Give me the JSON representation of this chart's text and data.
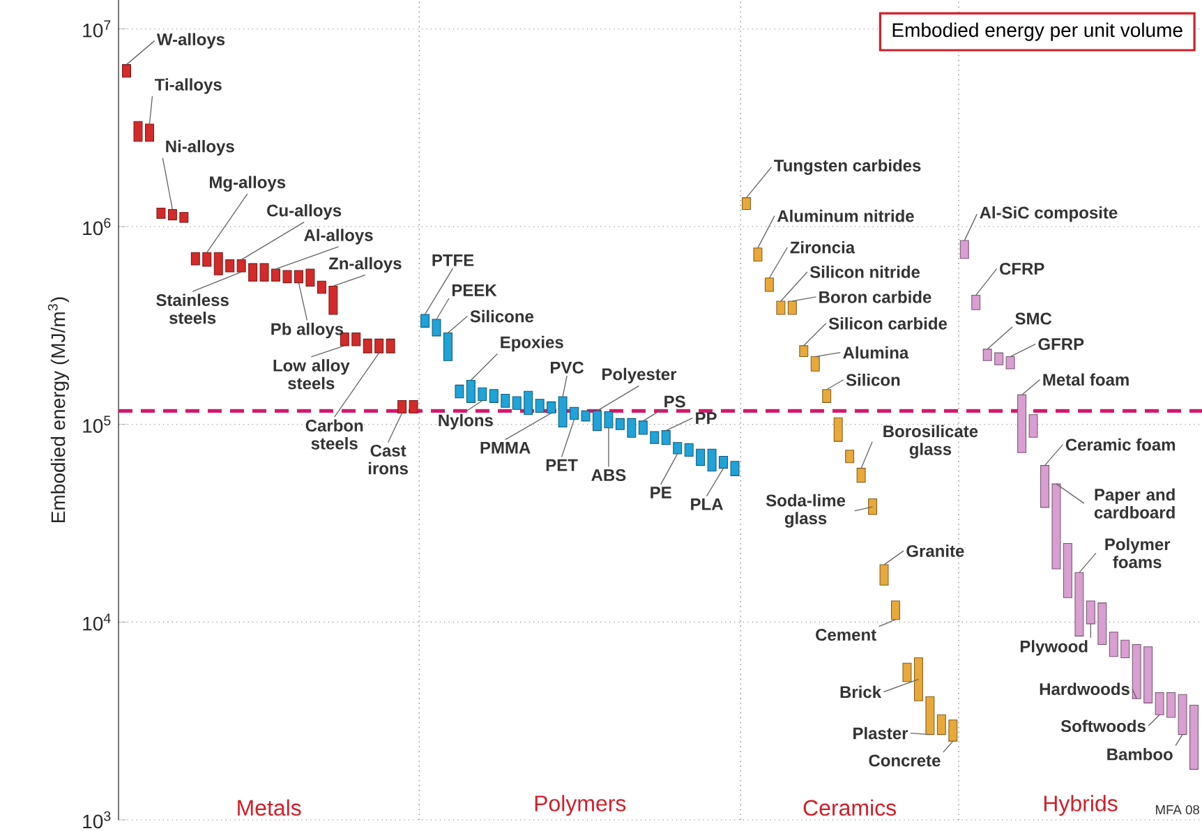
{
  "chart_data": {
    "type": "bar",
    "title": "Embodied energy per unit volume",
    "ylabel": "Embodied energy (MJ/m$^{3}$)",
    "categories": [
      null,
      null,
      null,
      null,
      null,
      null,
      null,
      null,
      null,
      null,
      null,
      null,
      null,
      null,
      null,
      null,
      null,
      null,
      null,
      null,
      null,
      null,
      null,
      null,
      null,
      null,
      null,
      null,
      null,
      null,
      null,
      null,
      null,
      null,
      null,
      null,
      null,
      null,
      null,
      null,
      null,
      null,
      null,
      null,
      null,
      null,
      null,
      null,
      null,
      null,
      null,
      null,
      null,
      null,
      null,
      null,
      null,
      null,
      null,
      null,
      null,
      null,
      null,
      null,
      null,
      null,
      null,
      null,
      null,
      null,
      null,
      null,
      null,
      null,
      null,
      null,
      null,
      null,
      null,
      null,
      null,
      null,
      null,
      null,
      null,
      null,
      null,
      null,
      null,
      null,
      null,
      null,
      null,
      null
    ],
    "base": [
      5700000,
      2700000,
      2700000,
      1100000,
      1080000,
      1050000,
      640000,
      630000,
      570000,
      590000,
      590000,
      530000,
      530000,
      530000,
      520000,
      520000,
      500000,
      460000,
      360000,
      250000,
      250000,
      230000,
      230000,
      230000,
      114000,
      114000,
      310000,
      280000,
      210000,
      136000,
      129000,
      132000,
      129000,
      122000,
      119000,
      112000,
      115000,
      114000,
      97000,
      106000,
      104000,
      93000,
      96000,
      94000,
      86000,
      89000,
      80000,
      79000,
      71000,
      69000,
      62000,
      58000,
      60000,
      55000,
      1220000,
      670000,
      470000,
      360000,
      360000,
      220000,
      186000,
      129000,
      82000,
      64000,
      51000,
      35000,
      15400,
      10300,
      5000,
      4000,
      2700,
      2700,
      2500,
      690000,
      380000,
      210000,
      200000,
      191000,
      72000,
      86000,
      38000,
      18600,
      13300,
      8500,
      9800,
      7700,
      6700,
      6600,
      4100,
      3900,
      3400,
      3300,
      2700,
      1800
    ],
    "values": [
      900000,
      700000,
      600000,
      140000,
      140000,
      130000,
      100000,
      110000,
      170000,
      90000,
      90000,
      120000,
      120000,
      80000,
      80000,
      80000,
      110000,
      70000,
      140000,
      40000,
      40000,
      40000,
      40000,
      40000,
      18000,
      18000,
      50000,
      60000,
      80000,
      22000,
      38000,
      21000,
      21000,
      20000,
      19000,
      35000,
      19000,
      16000,
      41000,
      16000,
      13000,
      24000,
      20000,
      13000,
      21000,
      15000,
      12000,
      14000,
      10000,
      11000,
      13000,
      17000,
      9000,
      10000,
      180000,
      110000,
      80000,
      60000,
      60000,
      30000,
      34000,
      21000,
      26000,
      10000,
      9000,
      7000,
      4100,
      2500,
      1200,
      2600,
      1500,
      700,
      700,
      160000,
      70000,
      30000,
      30000,
      29000,
      69000,
      26000,
      24000,
      31400,
      11700,
      9300,
      3000,
      4800,
      2200,
      1500,
      3600,
      3600,
      1000,
      1100,
      1600,
      2000
    ],
    "colors": [
      "#d42a2a",
      "#d42a2a",
      "#d42a2a",
      "#d42a2a",
      "#d42a2a",
      "#d42a2a",
      "#d42a2a",
      "#d42a2a",
      "#d42a2a",
      "#d42a2a",
      "#d42a2a",
      "#d42a2a",
      "#d42a2a",
      "#d42a2a",
      "#d42a2a",
      "#d42a2a",
      "#d42a2a",
      "#d42a2a",
      "#d42a2a",
      "#d42a2a",
      "#d42a2a",
      "#d42a2a",
      "#d42a2a",
      "#d42a2a",
      "#d42a2a",
      "#d42a2a",
      "#1fa3d8",
      "#1fa3d8",
      "#1fa3d8",
      "#1fa3d8",
      "#1fa3d8",
      "#1fa3d8",
      "#1fa3d8",
      "#1fa3d8",
      "#1fa3d8",
      "#1fa3d8",
      "#1fa3d8",
      "#1fa3d8",
      "#1fa3d8",
      "#1fa3d8",
      "#1fa3d8",
      "#1fa3d8",
      "#1fa3d8",
      "#1fa3d8",
      "#1fa3d8",
      "#1fa3d8",
      "#1fa3d8",
      "#1fa3d8",
      "#1fa3d8",
      "#1fa3d8",
      "#1fa3d8",
      "#1fa3d8",
      "#1fa3d8",
      "#1fa3d8",
      "#e8a93a",
      "#e8a93a",
      "#e8a93a",
      "#e8a93a",
      "#e8a93a",
      "#e8a93a",
      "#e8a93a",
      "#e8a93a",
      "#e8a93a",
      "#e8a93a",
      "#e8a93a",
      "#e8a93a",
      "#e8a93a",
      "#e8a93a",
      "#e8a93a",
      "#e8a93a",
      "#e8a93a",
      "#e8a93a",
      "#e8a93a",
      "#d89fd0",
      "#d89fd0",
      "#d89fd0",
      "#d89fd0",
      "#d89fd0",
      "#d89fd0",
      "#d89fd0",
      "#d89fd0",
      "#d89fd0",
      "#d89fd0",
      "#d89fd0",
      "#d89fd0",
      "#d89fd0",
      "#d89fd0",
      "#d89fd0",
      "#d89fd0",
      "#d89fd0",
      "#d89fd0",
      "#d89fd0",
      "#d89fd0",
      "#d89fd0"
    ],
    "log": true,
    "grid": "y",
    "tick_labels": "y",
    "ylim": [
      1000,
      14000000
    ],
    "yticks": [
      {
        "value": 1000,
        "label": "10$^{3}$"
      },
      {
        "value": 10000,
        "label": "10$^{4}$"
      },
      {
        "value": 100000,
        "label": "10$^{5}$"
      },
      {
        "value": 1000000,
        "label": "10$^{6}$"
      },
      {
        "value": 10000000,
        "label": "10$^{7}$"
      }
    ],
    "ref_lines": [
      {
        "axis": "y",
        "value": 117000,
        "color": "#d6186e",
        "line_style": "dashed"
      }
    ],
    "annotations": [
      "W-alloys",
      "Ti-alloys",
      "Ni-alloys",
      "Mg-alloys",
      "Cu-alloys",
      "Al-alloys",
      "Zn-alloys",
      "Stainless steels",
      "Pb alloys",
      "Low alloy steels",
      "Carbon steels",
      "Cast irons",
      "PTFE",
      "PEEK",
      "Silicone",
      "Epoxies",
      "PVC",
      "Polyester",
      "PS",
      "PP",
      "Nylons",
      "PMMA",
      "PET",
      "ABS",
      "PE",
      "PLA",
      "Tungsten carbides",
      "Aluminum nitride",
      "Zironcia",
      "Silicon nitride",
      "Boron carbide",
      "Silicon carbide",
      "Alumina",
      "Silicon",
      "Borosilicate glass",
      "Soda-lime glass",
      "Granite",
      "Cement",
      "Brick",
      "Plaster",
      "Concrete",
      "Al-SiC composite",
      "CFRP",
      "SMC",
      "GFRP",
      "Metal foam",
      "Ceramic foam",
      "Paper and cardboard",
      "Polymer foams",
      "Plywood",
      "Hardwoods",
      "Softwoods",
      "Bamboo",
      "Metals",
      "Polymers",
      "Ceramics",
      "Hybrids",
      "MFA 08"
    ]
  }
}
